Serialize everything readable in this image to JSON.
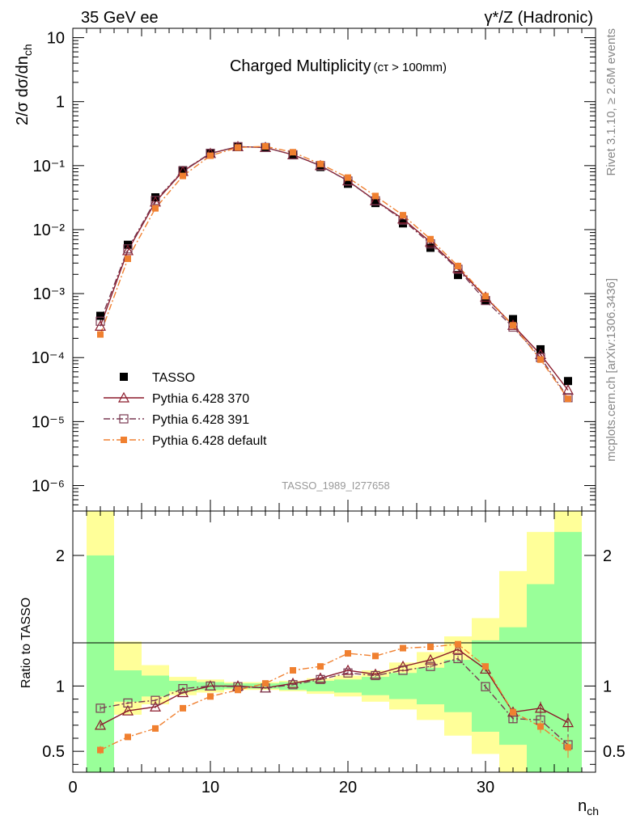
{
  "header": {
    "left": "35 GeV ee",
    "right_main": "γ*/Z (Hadronic)"
  },
  "side_labels": {
    "rivet": "Rivet 3.1.10, ≥ 2.6M events",
    "mcplots": "mcplots.cern.ch [arXiv:1306.3436]"
  },
  "chart_data": [
    {
      "type": "scatter",
      "panel": "main",
      "title": "Charged Multiplicity",
      "title_suffix": "(cτ > 100mm)",
      "watermark": "TASSO_1989_I277658",
      "ylabel": "2/σ dσ/dn_ch",
      "yscale": "log",
      "ylim": [
        4e-07,
        14
      ],
      "xlim": [
        0,
        38
      ],
      "ytick_labels": [
        "10⁻⁶",
        "10⁻⁵",
        "10⁻⁴",
        "10⁻³",
        "10⁻²",
        "10⁻¹",
        "1",
        "10"
      ],
      "legend_position": "lower-left",
      "x": [
        2,
        4,
        6,
        8,
        10,
        12,
        14,
        16,
        18,
        20,
        22,
        24,
        26,
        28,
        30,
        32,
        34,
        36
      ],
      "series": [
        {
          "name": "TASSO",
          "color": "#000000",
          "marker": "filled-square",
          "values": [
            0.00045,
            0.0058,
            0.032,
            0.085,
            0.155,
            0.198,
            0.195,
            0.145,
            0.095,
            0.052,
            0.026,
            0.0125,
            0.0052,
            0.00195,
            0.00078,
            0.0004,
            0.000135,
            4.3e-05
          ]
        },
        {
          "name": "Pythia 6.428 370",
          "color": "#8b1a2b",
          "marker": "open-triangle",
          "line": "solid",
          "values": [
            0.00031,
            0.0047,
            0.027,
            0.081,
            0.155,
            0.198,
            0.192,
            0.148,
            0.1,
            0.058,
            0.0284,
            0.0147,
            0.0064,
            0.0025,
            0.00088,
            0.00032,
            0.000112,
            3.1e-05
          ]
        },
        {
          "name": "Pythia 6.428 391",
          "color": "#7a3a52",
          "marker": "open-square",
          "line": "dashdot",
          "values": [
            0.00037,
            0.005,
            0.0285,
            0.083,
            0.156,
            0.198,
            0.192,
            0.148,
            0.1,
            0.0575,
            0.0282,
            0.0141,
            0.006,
            0.0024,
            0.00078,
            0.0003,
            0.0001,
            2.36e-05
          ]
        },
        {
          "name": "Pythia 6.428 default",
          "color": "#f08030",
          "marker": "filled-small-square",
          "line": "dashdot",
          "values": [
            0.00023,
            0.0035,
            0.0215,
            0.069,
            0.143,
            0.192,
            0.2,
            0.162,
            0.106,
            0.065,
            0.0335,
            0.0168,
            0.0071,
            0.0027,
            0.00091,
            0.00032,
            9.3e-05,
            2.27e-05
          ]
        }
      ]
    },
    {
      "type": "scatter",
      "panel": "ratio",
      "ylabel": "Ratio to TASSO",
      "xlabel": "n_ch",
      "ylim": [
        0.34,
        2.34
      ],
      "xlim": [
        0,
        38
      ],
      "x_ticks": [
        0,
        10,
        20,
        30
      ],
      "y_ticks": [
        0.5,
        1,
        2
      ],
      "reference_line": 1,
      "uncertainty_bands": {
        "bin_edges": [
          1,
          3,
          5,
          7,
          9,
          11,
          13,
          15,
          17,
          19,
          21,
          23,
          25,
          27,
          29,
          31,
          33,
          35,
          37
        ],
        "inner_color": "#99ff99",
        "outer_color": "#ffff99",
        "inner_lo": [
          0.34,
          0.88,
          0.92,
          0.96,
          0.97,
          0.98,
          0.98,
          0.97,
          0.96,
          0.95,
          0.93,
          0.9,
          0.86,
          0.8,
          0.65,
          0.55,
          0.34,
          0.34
        ],
        "inner_hi": [
          2.0,
          1.12,
          1.08,
          1.04,
          1.03,
          1.02,
          1.02,
          1.03,
          1.04,
          1.05,
          1.07,
          1.1,
          1.14,
          1.2,
          1.35,
          1.45,
          1.78,
          2.18
        ],
        "outer_lo": [
          0.34,
          0.78,
          0.86,
          0.93,
          0.95,
          0.97,
          0.97,
          0.96,
          0.94,
          0.92,
          0.88,
          0.82,
          0.74,
          0.62,
          0.48,
          0.34,
          0.34,
          0.34
        ],
        "outer_hi": [
          2.34,
          1.34,
          1.16,
          1.07,
          1.05,
          1.03,
          1.03,
          1.04,
          1.06,
          1.08,
          1.12,
          1.18,
          1.26,
          1.38,
          1.52,
          1.88,
          2.18,
          2.34
        ]
      },
      "x": [
        2,
        4,
        6,
        8,
        10,
        12,
        14,
        16,
        18,
        20,
        22,
        24,
        26,
        28,
        30,
        32,
        34,
        36
      ],
      "series": [
        {
          "name": "Pythia 6.428 370",
          "color": "#8b1a2b",
          "marker": "open-triangle",
          "line": "solid",
          "values": [
            0.7,
            0.81,
            0.84,
            0.95,
            1.0,
            1.0,
            0.985,
            1.02,
            1.06,
            1.12,
            1.09,
            1.15,
            1.2,
            1.28,
            1.13,
            0.8,
            0.83,
            0.72
          ],
          "errors": [
            0.02,
            0.01,
            0.01,
            0.01,
            0.005,
            0.005,
            0.005,
            0.005,
            0.005,
            0.01,
            0.01,
            0.01,
            0.01,
            0.02,
            0.02,
            0.03,
            0.05,
            0.07
          ]
        },
        {
          "name": "Pythia 6.428 391",
          "color": "#7a3a52",
          "marker": "open-square",
          "line": "dashdot",
          "values": [
            0.83,
            0.87,
            0.89,
            0.98,
            1.0,
            0.995,
            0.985,
            1.01,
            1.05,
            1.1,
            1.08,
            1.12,
            1.15,
            1.21,
            0.995,
            0.75,
            0.74,
            0.55
          ],
          "errors": [
            0.02,
            0.01,
            0.01,
            0.01,
            0.005,
            0.005,
            0.005,
            0.005,
            0.005,
            0.01,
            0.01,
            0.01,
            0.01,
            0.02,
            0.02,
            0.03,
            0.05,
            0.08
          ]
        },
        {
          "name": "Pythia 6.428 default",
          "color": "#f08030",
          "marker": "filled-small-square",
          "line": "dashdot",
          "values": [
            0.51,
            0.61,
            0.675,
            0.83,
            0.92,
            0.97,
            1.02,
            1.12,
            1.15,
            1.25,
            1.23,
            1.29,
            1.3,
            1.32,
            1.15,
            0.8,
            0.69,
            0.53
          ],
          "errors": [
            0.03,
            0.01,
            0.01,
            0.01,
            0.005,
            0.005,
            0.005,
            0.005,
            0.005,
            0.01,
            0.01,
            0.01,
            0.01,
            0.02,
            0.02,
            0.03,
            0.05,
            0.08
          ]
        }
      ]
    }
  ]
}
